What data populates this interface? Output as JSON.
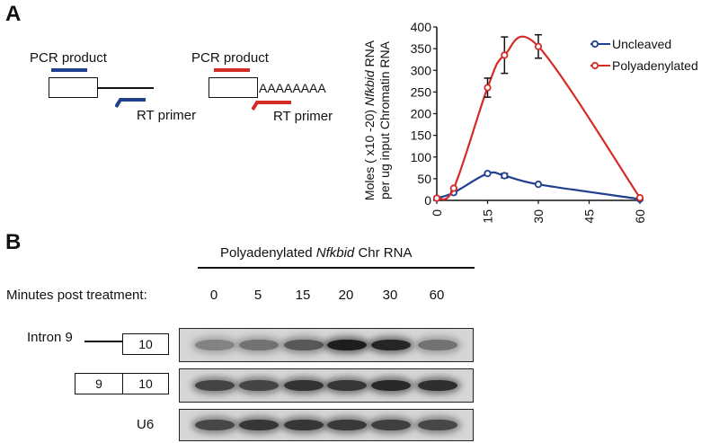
{
  "panels": {
    "a": "A",
    "b": "B"
  },
  "schematic": {
    "left_pcr_label": "PCR product",
    "left_rt_label": "RT primer",
    "right_pcr_label": "PCR product",
    "right_rt_label": "RT primer",
    "polya_text": "AAAAAAAA",
    "blue_color": "#1f3f8f",
    "red_color": "#d42b27"
  },
  "chart_data": {
    "type": "line",
    "ylabel_line1_parts": [
      "Moles  ( x10 -20) ",
      "Nfkbid",
      " RNA"
    ],
    "ylabel_line2": "per ug input Chromatin RNA",
    "xlim": [
      0,
      60
    ],
    "ylim": [
      0,
      400
    ],
    "xticks": [
      "0",
      "15",
      "30",
      "45",
      "60"
    ],
    "yticks": [
      "0",
      "50",
      "100",
      "150",
      "200",
      "250",
      "300",
      "350",
      "400"
    ],
    "legend_position": "top-right",
    "series": [
      {
        "name": "Uncleaved",
        "color": "#1f3f8f",
        "x": [
          0,
          5,
          15,
          20,
          30,
          60
        ],
        "y": [
          5,
          18,
          62,
          57,
          37,
          3
        ],
        "err": [
          2,
          3,
          4,
          5,
          4,
          2
        ]
      },
      {
        "name": "Polyadenylated",
        "color": "#d42b27",
        "x": [
          0,
          5,
          15,
          20,
          30,
          60
        ],
        "y": [
          5,
          28,
          260,
          335,
          355,
          6
        ],
        "err": [
          2,
          3,
          22,
          42,
          27,
          2
        ]
      }
    ]
  },
  "gel": {
    "title_parts": [
      "Polyadenylated ",
      "Nfkbid",
      " Chr RNA"
    ],
    "minutes_label": "Minutes post treatment:",
    "timepoints": [
      "0",
      "5",
      "15",
      "20",
      "30",
      "60"
    ],
    "intron_label": "Intron 9",
    "intron_box": "10",
    "exon_box_left": "9",
    "exon_box_right": "10",
    "u6_label": "U6",
    "row1_intensity": [
      0.35,
      0.45,
      0.6,
      0.95,
      0.9,
      0.45
    ],
    "row2_intensity": [
      0.72,
      0.72,
      0.82,
      0.8,
      0.88,
      0.85
    ],
    "row3_intensity": [
      0.7,
      0.8,
      0.8,
      0.78,
      0.75,
      0.7
    ]
  }
}
